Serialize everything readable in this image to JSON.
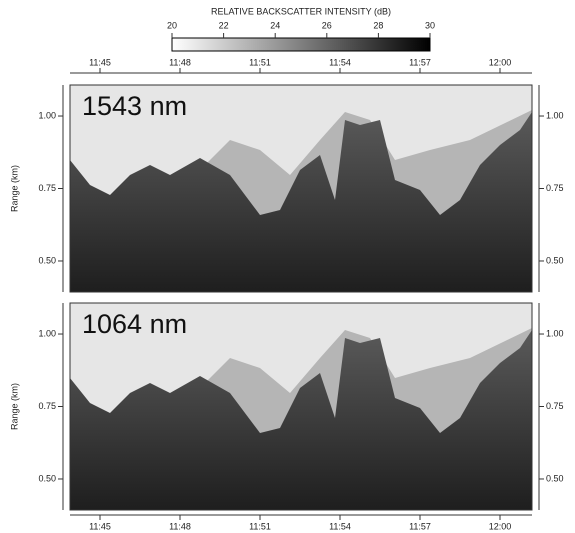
{
  "chart_data": [
    {
      "type": "image",
      "annotation": "1543 nm",
      "ylabel": "Range (km)",
      "xlim": [
        703.875,
        721.2
      ],
      "xticks": [
        {
          "value": 705,
          "label": "11:45"
        },
        {
          "value": 708,
          "label": "11:48"
        },
        {
          "value": 711,
          "label": "11:51"
        },
        {
          "value": 714,
          "label": "11:54"
        },
        {
          "value": 717,
          "label": "11:57"
        },
        {
          "value": 720,
          "label": "12:00"
        }
      ],
      "ylim": [
        0.393,
        1.107
      ],
      "yticks": [
        {
          "value": 0.5,
          "label": "0.50"
        },
        {
          "value": 0.75,
          "label": "0.75"
        },
        {
          "value": 1,
          "label": "1.00"
        }
      ],
      "colorbar": {
        "title": "RELATIVE BACKSCATTER INTENSITY (dB)",
        "clim": [
          20,
          30
        ],
        "ticks": [
          20,
          22,
          24,
          26,
          28,
          30
        ]
      }
    },
    {
      "type": "image",
      "annotation": "1064 nm",
      "ylabel": "Range (km)",
      "xlim": [
        703.875,
        721.2
      ],
      "xticks": [
        {
          "value": 705,
          "label": "11:45"
        },
        {
          "value": 708,
          "label": "11:48"
        },
        {
          "value": 711,
          "label": "11:51"
        },
        {
          "value": 714,
          "label": "11:54"
        },
        {
          "value": 717,
          "label": "11:57"
        },
        {
          "value": 720,
          "label": "12:00"
        }
      ],
      "ylim": [
        0.393,
        1.107
      ],
      "yticks": [
        {
          "value": 0.5,
          "label": "0.50"
        },
        {
          "value": 0.75,
          "label": "0.75"
        },
        {
          "value": 1,
          "label": "1.00"
        }
      ]
    }
  ]
}
